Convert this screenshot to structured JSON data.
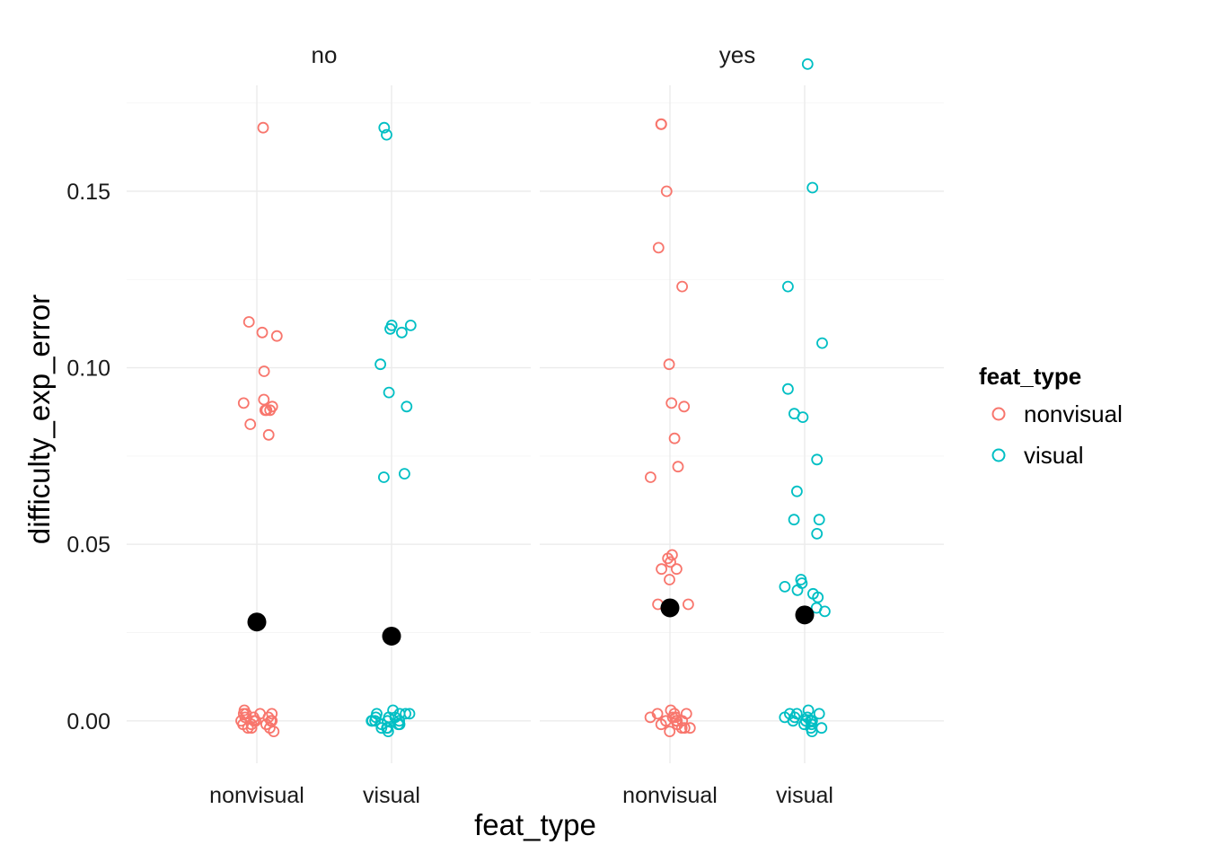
{
  "chart_data": {
    "type": "scatter",
    "facet_variable_labels": [
      "no",
      "yes"
    ],
    "xlabel": "feat_type",
    "ylabel": "difficulty_exp_error",
    "categories": [
      "nonvisual",
      "visual"
    ],
    "yticks": [
      "0.00",
      "0.05",
      "0.10",
      "0.15"
    ],
    "ylim": [
      -0.012,
      0.18
    ],
    "grid": true,
    "legend": {
      "title": "feat_type",
      "position": "right",
      "entries": [
        {
          "label": "nonvisual",
          "color": "#F8766D"
        },
        {
          "label": "visual",
          "color": "#00BFC4"
        }
      ]
    },
    "series_colors": {
      "nonvisual": "#F8766D",
      "visual": "#00BFC4",
      "mean": "#000000"
    },
    "panels": [
      {
        "facet": "no",
        "points": {
          "nonvisual": [
            0.168,
            0.113,
            0.11,
            0.109,
            0.099,
            0.091,
            0.09,
            0.089,
            0.088,
            0.088,
            0.088,
            0.084,
            0.081,
            0.003,
            0.002,
            0.002,
            0.001,
            0.001,
            0.0,
            0.0,
            0.0,
            0.0,
            -0.001,
            -0.001,
            -0.002,
            -0.002,
            -0.003,
            0.002,
            0.001,
            0.0,
            -0.002,
            0.002,
            -0.001
          ],
          "visual": [
            0.168,
            0.166,
            0.112,
            0.112,
            0.111,
            0.11,
            0.101,
            0.093,
            0.089,
            0.07,
            0.069,
            0.003,
            0.002,
            0.002,
            0.001,
            0.001,
            0.0,
            0.0,
            0.0,
            -0.001,
            -0.001,
            -0.002,
            -0.002,
            -0.003,
            0.002,
            0.001,
            0.0,
            -0.002,
            0.002,
            -0.001,
            0.0
          ],
          "mean": {
            "nonvisual": 0.028,
            "visual": 0.024
          }
        }
      },
      {
        "facet": "yes",
        "points": {
          "nonvisual": [
            0.169,
            0.169,
            0.15,
            0.134,
            0.123,
            0.101,
            0.09,
            0.089,
            0.08,
            0.072,
            0.069,
            0.047,
            0.046,
            0.045,
            0.043,
            0.043,
            0.04,
            0.033,
            0.033,
            0.003,
            0.002,
            0.002,
            0.001,
            0.001,
            0.0,
            0.0,
            0.0,
            -0.001,
            -0.001,
            -0.002,
            -0.002,
            -0.003,
            0.002,
            0.001,
            0.0,
            -0.002
          ],
          "visual": [
            0.186,
            0.151,
            0.123,
            0.107,
            0.094,
            0.087,
            0.086,
            0.074,
            0.065,
            0.057,
            0.057,
            0.053,
            0.04,
            0.039,
            0.038,
            0.037,
            0.036,
            0.035,
            0.032,
            0.031,
            0.003,
            0.002,
            0.002,
            0.001,
            0.001,
            0.0,
            0.0,
            0.0,
            -0.001,
            -0.001,
            -0.002,
            -0.002,
            -0.003,
            0.002,
            0.001,
            0.0
          ],
          "mean": {
            "nonvisual": 0.032,
            "visual": 0.03
          }
        }
      }
    ]
  }
}
